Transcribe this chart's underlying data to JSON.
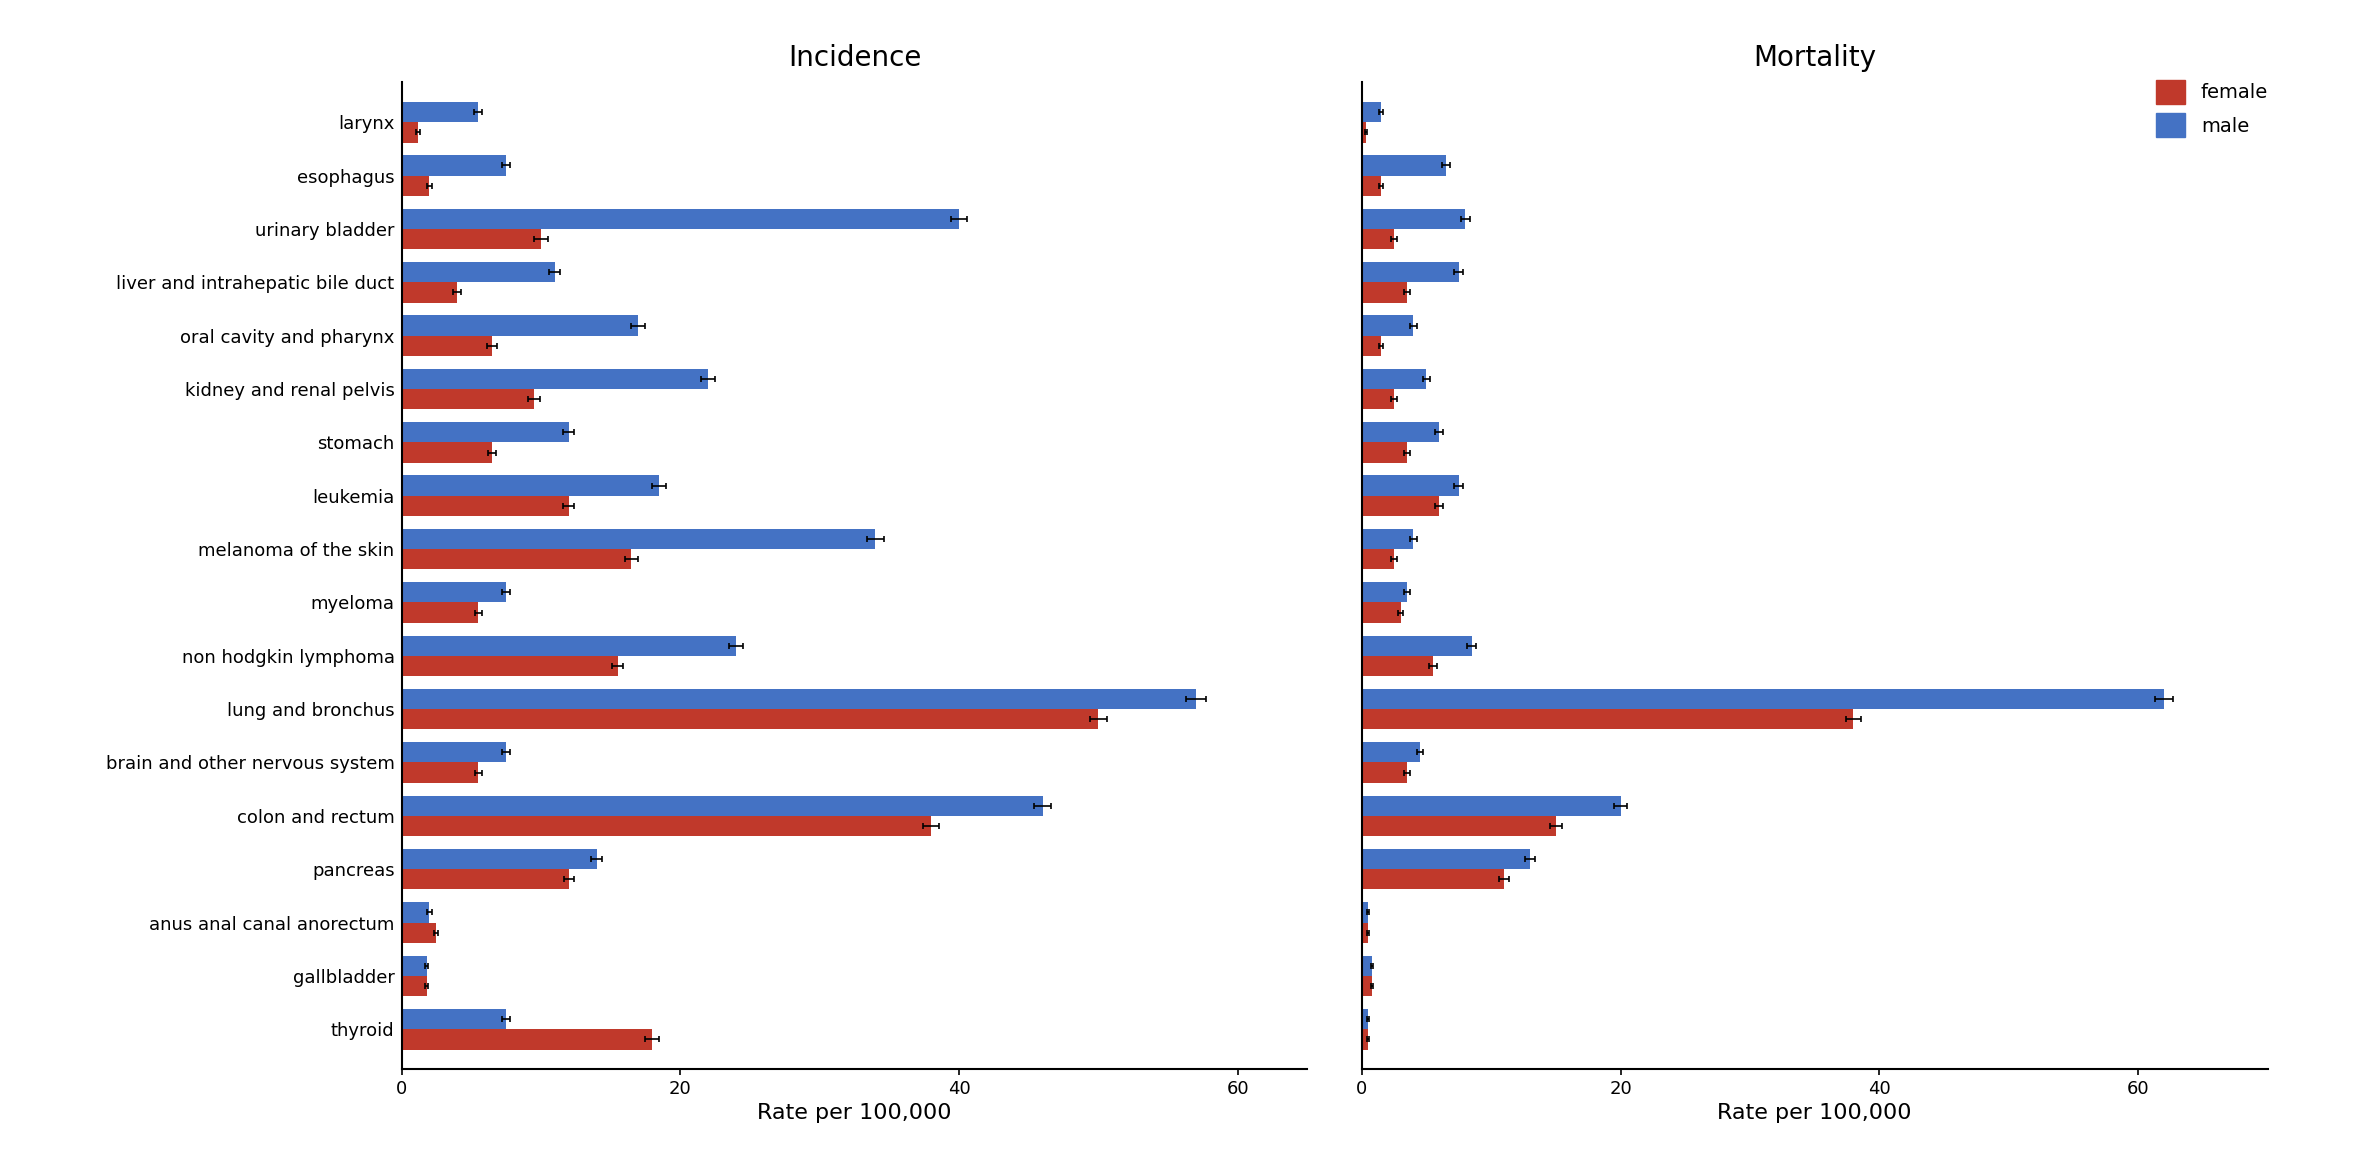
{
  "categories": [
    "thyroid",
    "gallbladder",
    "anus anal canal anorectum",
    "pancreas",
    "colon and rectum",
    "brain and other nervous system",
    "lung and bronchus",
    "non hodgkin lymphoma",
    "myeloma",
    "melanoma of the skin",
    "leukemia",
    "stomach",
    "kidney and renal pelvis",
    "oral cavity and pharynx",
    "liver and intrahepatic bile duct",
    "urinary bladder",
    "esophagus",
    "larynx"
  ],
  "incidence_male": [
    7.5,
    1.8,
    2.0,
    14.0,
    46.0,
    7.5,
    57.0,
    24.0,
    7.5,
    34.0,
    18.5,
    12.0,
    22.0,
    17.0,
    11.0,
    40.0,
    7.5,
    5.5
  ],
  "incidence_female": [
    18.0,
    1.8,
    2.5,
    12.0,
    38.0,
    5.5,
    50.0,
    15.5,
    5.5,
    16.5,
    12.0,
    6.5,
    9.5,
    6.5,
    4.0,
    10.0,
    2.0,
    1.2
  ],
  "incidence_male_err": [
    0.3,
    0.12,
    0.15,
    0.4,
    0.6,
    0.3,
    0.7,
    0.5,
    0.3,
    0.6,
    0.5,
    0.4,
    0.5,
    0.5,
    0.4,
    0.6,
    0.3,
    0.3
  ],
  "incidence_female_err": [
    0.5,
    0.12,
    0.15,
    0.35,
    0.55,
    0.25,
    0.6,
    0.4,
    0.25,
    0.5,
    0.4,
    0.3,
    0.4,
    0.35,
    0.3,
    0.5,
    0.2,
    0.15
  ],
  "mortality_male": [
    0.5,
    0.8,
    0.5,
    13.0,
    20.0,
    4.5,
    62.0,
    8.5,
    3.5,
    4.0,
    7.5,
    6.0,
    5.0,
    4.0,
    7.5,
    8.0,
    6.5,
    1.5
  ],
  "mortality_female": [
    0.5,
    0.8,
    0.5,
    11.0,
    15.0,
    3.5,
    38.0,
    5.5,
    3.0,
    2.5,
    6.0,
    3.5,
    2.5,
    1.5,
    3.5,
    2.5,
    1.5,
    0.3
  ],
  "mortality_male_err": [
    0.1,
    0.1,
    0.1,
    0.4,
    0.5,
    0.25,
    0.7,
    0.35,
    0.25,
    0.25,
    0.35,
    0.3,
    0.3,
    0.25,
    0.35,
    0.35,
    0.3,
    0.15
  ],
  "mortality_female_err": [
    0.1,
    0.1,
    0.1,
    0.38,
    0.45,
    0.2,
    0.6,
    0.3,
    0.2,
    0.2,
    0.3,
    0.25,
    0.2,
    0.15,
    0.25,
    0.2,
    0.15,
    0.08
  ],
  "male_color": "#4472C4",
  "female_color": "#C0392B",
  "bar_height": 0.38,
  "title_incidence": "Incidence",
  "title_mortality": "Mortality",
  "xlabel": "Rate per 100,000",
  "incidence_xlim": [
    0,
    65
  ],
  "mortality_xlim": [
    0,
    70
  ],
  "background_color": "#FFFFFF"
}
